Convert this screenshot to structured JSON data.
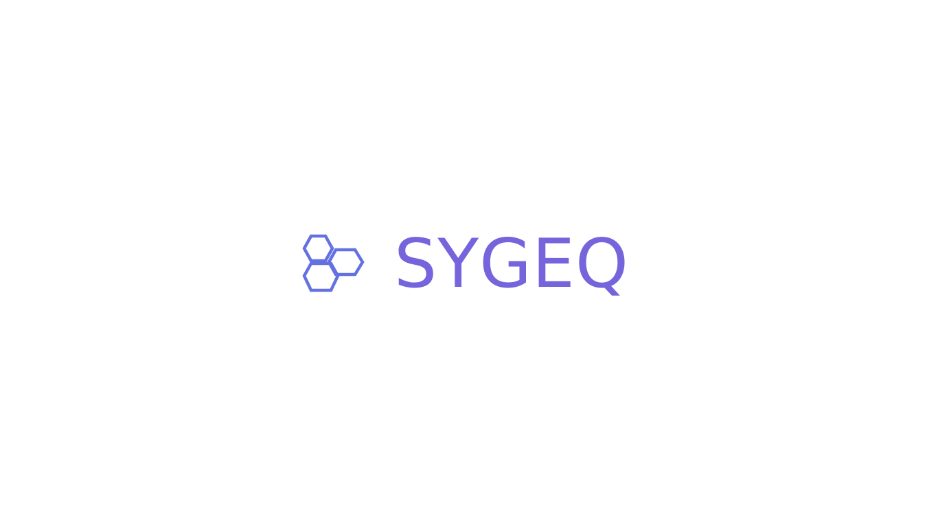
{
  "brand": {
    "name": "SYGEQ",
    "icon": "hexagon-cluster-icon",
    "icon_color": "#6471e0",
    "text_color": "#7564dc"
  },
  "background": "#ffffff"
}
